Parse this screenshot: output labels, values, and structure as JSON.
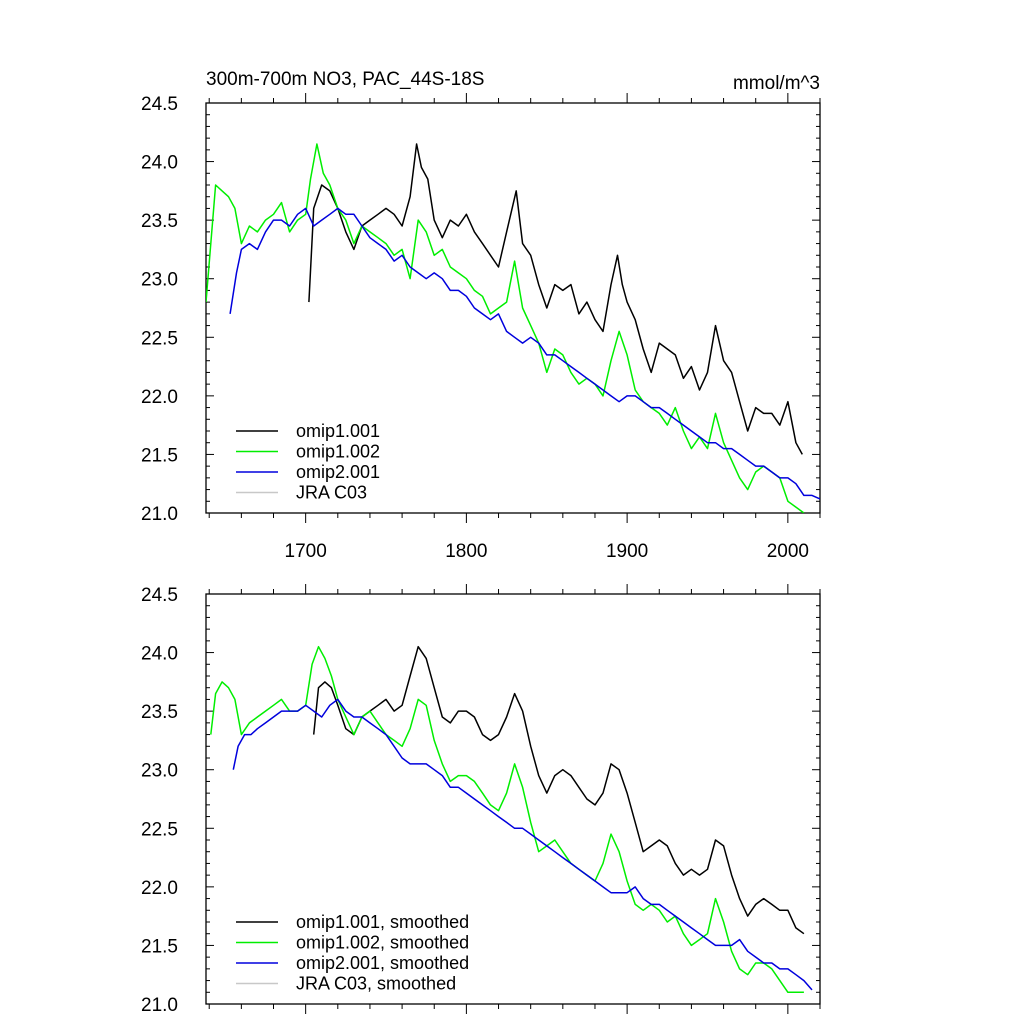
{
  "chart_data": [
    {
      "type": "line",
      "title": "300m-700m NO3, PAC_44S-18S",
      "units_label": "mmol/m^3",
      "xlim": [
        1638,
        2020
      ],
      "ylim": [
        21.0,
        24.5
      ],
      "xticks": [
        1700,
        1800,
        1900,
        2000
      ],
      "xtick_labels": [
        "1700",
        "1800",
        "1900",
        "2000"
      ],
      "yticks": [
        21.0,
        21.5,
        22.0,
        22.5,
        23.0,
        23.5,
        24.0,
        24.5
      ],
      "ytick_labels": [
        "21.0",
        "21.5",
        "22.0",
        "22.5",
        "23.0",
        "23.5",
        "24.0",
        "24.5"
      ],
      "legend_position": "bottom-left",
      "series": [
        {
          "name": "omip1.001",
          "color": "#000000",
          "x": [
            1702,
            1705,
            1710,
            1715,
            1720,
            1725,
            1730,
            1735,
            1740,
            1745,
            1750,
            1755,
            1760,
            1765,
            1769,
            1772,
            1776,
            1780,
            1785,
            1790,
            1795,
            1800,
            1805,
            1810,
            1815,
            1820,
            1825,
            1831,
            1835,
            1840,
            1845,
            1850,
            1855,
            1860,
            1865,
            1870,
            1875,
            1880,
            1885,
            1890,
            1894,
            1897,
            1900,
            1905,
            1910,
            1915,
            1920,
            1925,
            1930,
            1935,
            1940,
            1945,
            1950,
            1955,
            1960,
            1965,
            1970,
            1975,
            1980,
            1985,
            1990,
            1995,
            2000,
            2005,
            2009
          ],
          "values": [
            22.8,
            23.6,
            23.8,
            23.75,
            23.6,
            23.4,
            23.25,
            23.45,
            23.5,
            23.55,
            23.6,
            23.55,
            23.45,
            23.7,
            24.15,
            23.95,
            23.85,
            23.5,
            23.35,
            23.5,
            23.45,
            23.55,
            23.4,
            23.3,
            23.2,
            23.1,
            23.4,
            23.75,
            23.3,
            23.2,
            22.95,
            22.75,
            22.95,
            22.9,
            22.95,
            22.7,
            22.8,
            22.65,
            22.55,
            22.95,
            23.2,
            22.95,
            22.8,
            22.65,
            22.4,
            22.2,
            22.45,
            22.4,
            22.35,
            22.15,
            22.25,
            22.05,
            22.2,
            22.6,
            22.3,
            22.2,
            21.95,
            21.7,
            21.9,
            21.85,
            21.85,
            21.75,
            21.95,
            21.6,
            21.5
          ]
        },
        {
          "name": "omip1.002",
          "color": "#00ee00",
          "x": [
            1638,
            1641,
            1644,
            1648,
            1652,
            1656,
            1660,
            1665,
            1670,
            1675,
            1680,
            1685,
            1690,
            1695,
            1700,
            1703,
            1707,
            1711,
            1715,
            1720,
            1725,
            1730,
            1735,
            1740,
            1745,
            1750,
            1755,
            1760,
            1765,
            1770,
            1775,
            1780,
            1785,
            1790,
            1795,
            1800,
            1805,
            1810,
            1815,
            1820,
            1825,
            1830,
            1835,
            1840,
            1845,
            1850,
            1855,
            1860,
            1865,
            1870,
            1875,
            1880,
            1885,
            1890,
            1895,
            1900,
            1905,
            1910,
            1915,
            1920,
            1925,
            1930,
            1935,
            1940,
            1945,
            1950,
            1955,
            1960,
            1965,
            1970,
            1975,
            1980,
            1985,
            1990,
            1995,
            2000,
            2005,
            2010
          ],
          "values": [
            22.8,
            23.3,
            23.8,
            23.75,
            23.7,
            23.6,
            23.3,
            23.45,
            23.4,
            23.5,
            23.55,
            23.65,
            23.4,
            23.5,
            23.55,
            23.85,
            24.15,
            23.9,
            23.8,
            23.6,
            23.5,
            23.3,
            23.45,
            23.4,
            23.35,
            23.3,
            23.2,
            23.25,
            23.0,
            23.5,
            23.4,
            23.2,
            23.25,
            23.1,
            23.05,
            23.0,
            22.9,
            22.85,
            22.7,
            22.75,
            22.8,
            23.15,
            22.75,
            22.6,
            22.45,
            22.2,
            22.4,
            22.35,
            22.2,
            22.1,
            22.15,
            22.1,
            22.0,
            22.3,
            22.55,
            22.35,
            22.05,
            21.95,
            21.9,
            21.85,
            21.75,
            21.9,
            21.7,
            21.55,
            21.65,
            21.55,
            21.85,
            21.6,
            21.45,
            21.3,
            21.2,
            21.35,
            21.4,
            21.35,
            21.3,
            21.1,
            21.05,
            21.0
          ]
        },
        {
          "name": "omip2.001",
          "color": "#0000dd",
          "x": [
            1653,
            1657,
            1660,
            1665,
            1670,
            1675,
            1680,
            1685,
            1690,
            1695,
            1700,
            1705,
            1710,
            1715,
            1720,
            1725,
            1730,
            1735,
            1740,
            1745,
            1750,
            1755,
            1760,
            1765,
            1770,
            1775,
            1780,
            1785,
            1790,
            1795,
            1800,
            1805,
            1810,
            1815,
            1820,
            1825,
            1830,
            1835,
            1840,
            1845,
            1850,
            1855,
            1860,
            1865,
            1870,
            1875,
            1880,
            1885,
            1890,
            1895,
            1900,
            1905,
            1910,
            1915,
            1920,
            1925,
            1930,
            1935,
            1940,
            1945,
            1950,
            1955,
            1960,
            1965,
            1970,
            1975,
            1980,
            1985,
            1990,
            1995,
            2000,
            2005,
            2010,
            2015,
            2020
          ],
          "values": [
            22.7,
            23.05,
            23.25,
            23.3,
            23.25,
            23.4,
            23.5,
            23.5,
            23.45,
            23.55,
            23.6,
            23.45,
            23.5,
            23.55,
            23.6,
            23.55,
            23.55,
            23.45,
            23.35,
            23.3,
            23.25,
            23.15,
            23.2,
            23.1,
            23.05,
            23.0,
            23.05,
            23.0,
            22.9,
            22.9,
            22.85,
            22.75,
            22.7,
            22.65,
            22.7,
            22.55,
            22.5,
            22.45,
            22.5,
            22.45,
            22.35,
            22.35,
            22.3,
            22.25,
            22.2,
            22.15,
            22.1,
            22.05,
            22.0,
            21.95,
            22.0,
            22.0,
            21.95,
            21.9,
            21.9,
            21.85,
            21.8,
            21.75,
            21.7,
            21.65,
            21.6,
            21.6,
            21.55,
            21.55,
            21.5,
            21.45,
            21.4,
            21.4,
            21.35,
            21.3,
            21.3,
            21.25,
            21.15,
            21.15,
            21.12
          ]
        },
        {
          "name": "JRA C03",
          "color": "#c8c8c8",
          "x": [],
          "values": []
        }
      ]
    },
    {
      "type": "line",
      "title": "",
      "units_label": "",
      "xlim": [
        1638,
        2020
      ],
      "ylim": [
        21.0,
        24.5
      ],
      "xticks": [
        1700,
        1800,
        1900,
        2000
      ],
      "xtick_labels": [],
      "yticks": [
        21.0,
        21.5,
        22.0,
        22.5,
        23.0,
        23.5,
        24.0,
        24.5
      ],
      "ytick_labels": [
        "21.0",
        "21.5",
        "22.0",
        "22.5",
        "23.0",
        "23.5",
        "24.0",
        "24.5"
      ],
      "legend_position": "bottom-left",
      "series": [
        {
          "name": "omip1.001, smoothed",
          "color": "#000000",
          "x": [
            1705,
            1708,
            1712,
            1716,
            1720,
            1725,
            1730,
            1735,
            1740,
            1745,
            1750,
            1755,
            1760,
            1765,
            1770,
            1775,
            1780,
            1785,
            1790,
            1795,
            1800,
            1805,
            1810,
            1815,
            1820,
            1825,
            1830,
            1835,
            1840,
            1845,
            1850,
            1855,
            1860,
            1865,
            1870,
            1875,
            1880,
            1885,
            1890,
            1895,
            1900,
            1905,
            1910,
            1915,
            1920,
            1925,
            1930,
            1935,
            1940,
            1945,
            1950,
            1955,
            1960,
            1965,
            1970,
            1975,
            1980,
            1985,
            1990,
            1995,
            2000,
            2005,
            2010
          ],
          "values": [
            23.3,
            23.7,
            23.75,
            23.7,
            23.55,
            23.35,
            23.3,
            23.45,
            23.5,
            23.55,
            23.6,
            23.5,
            23.55,
            23.8,
            24.05,
            23.95,
            23.7,
            23.45,
            23.4,
            23.5,
            23.5,
            23.45,
            23.3,
            23.25,
            23.3,
            23.45,
            23.65,
            23.5,
            23.2,
            22.95,
            22.8,
            22.95,
            23.0,
            22.95,
            22.85,
            22.75,
            22.7,
            22.8,
            23.05,
            23.0,
            22.8,
            22.55,
            22.3,
            22.35,
            22.4,
            22.35,
            22.2,
            22.1,
            22.15,
            22.1,
            22.15,
            22.4,
            22.35,
            22.1,
            21.9,
            21.75,
            21.85,
            21.9,
            21.85,
            21.8,
            21.8,
            21.65,
            21.6
          ]
        },
        {
          "name": "omip1.002, smoothed",
          "color": "#00ee00",
          "x": [
            1641,
            1644,
            1648,
            1652,
            1656,
            1660,
            1665,
            1670,
            1675,
            1680,
            1685,
            1690,
            1695,
            1700,
            1704,
            1708,
            1712,
            1716,
            1720,
            1725,
            1730,
            1735,
            1740,
            1745,
            1750,
            1755,
            1760,
            1765,
            1770,
            1775,
            1780,
            1785,
            1790,
            1795,
            1800,
            1805,
            1810,
            1815,
            1820,
            1825,
            1830,
            1835,
            1840,
            1845,
            1850,
            1855,
            1860,
            1865,
            1870,
            1875,
            1880,
            1885,
            1890,
            1895,
            1900,
            1905,
            1910,
            1915,
            1920,
            1925,
            1930,
            1935,
            1940,
            1945,
            1950,
            1955,
            1960,
            1965,
            1970,
            1975,
            1980,
            1985,
            1990,
            1995,
            2000,
            2005,
            2010
          ],
          "values": [
            23.3,
            23.65,
            23.75,
            23.7,
            23.6,
            23.3,
            23.4,
            23.45,
            23.5,
            23.55,
            23.6,
            23.5,
            23.5,
            23.55,
            23.9,
            24.05,
            23.95,
            23.8,
            23.6,
            23.45,
            23.3,
            23.45,
            23.5,
            23.4,
            23.3,
            23.25,
            23.2,
            23.35,
            23.6,
            23.55,
            23.25,
            23.05,
            22.9,
            22.95,
            22.95,
            22.9,
            22.8,
            22.7,
            22.65,
            22.8,
            23.05,
            22.85,
            22.55,
            22.3,
            22.35,
            22.4,
            22.3,
            22.2,
            22.15,
            22.1,
            22.05,
            22.2,
            22.45,
            22.3,
            22.05,
            21.85,
            21.8,
            21.85,
            21.8,
            21.7,
            21.75,
            21.6,
            21.5,
            21.55,
            21.6,
            21.9,
            21.7,
            21.45,
            21.3,
            21.25,
            21.35,
            21.35,
            21.3,
            21.2,
            21.1,
            21.1,
            21.1
          ]
        },
        {
          "name": "omip2.001, smoothed",
          "color": "#0000dd",
          "x": [
            1655,
            1658,
            1662,
            1666,
            1670,
            1675,
            1680,
            1685,
            1690,
            1695,
            1700,
            1705,
            1710,
            1715,
            1720,
            1725,
            1730,
            1735,
            1740,
            1745,
            1750,
            1755,
            1760,
            1765,
            1770,
            1775,
            1780,
            1785,
            1790,
            1795,
            1800,
            1805,
            1810,
            1815,
            1820,
            1825,
            1830,
            1835,
            1840,
            1845,
            1850,
            1855,
            1860,
            1865,
            1870,
            1875,
            1880,
            1885,
            1890,
            1895,
            1900,
            1905,
            1910,
            1915,
            1920,
            1925,
            1930,
            1935,
            1940,
            1945,
            1950,
            1955,
            1960,
            1965,
            1970,
            1975,
            1980,
            1985,
            1990,
            1995,
            2000,
            2005,
            2010,
            2015
          ],
          "values": [
            23.0,
            23.2,
            23.3,
            23.3,
            23.35,
            23.4,
            23.45,
            23.5,
            23.5,
            23.5,
            23.55,
            23.5,
            23.45,
            23.55,
            23.6,
            23.5,
            23.45,
            23.45,
            23.4,
            23.35,
            23.3,
            23.2,
            23.1,
            23.05,
            23.05,
            23.05,
            23.0,
            22.95,
            22.85,
            22.85,
            22.8,
            22.75,
            22.7,
            22.65,
            22.6,
            22.55,
            22.5,
            22.5,
            22.45,
            22.4,
            22.35,
            22.3,
            22.25,
            22.2,
            22.15,
            22.1,
            22.05,
            22.0,
            21.95,
            21.95,
            21.95,
            22.0,
            21.9,
            21.85,
            21.85,
            21.8,
            21.75,
            21.7,
            21.65,
            21.6,
            21.55,
            21.5,
            21.5,
            21.5,
            21.55,
            21.45,
            21.4,
            21.35,
            21.35,
            21.3,
            21.3,
            21.25,
            21.2,
            21.12
          ]
        },
        {
          "name": "JRA C03, smoothed",
          "color": "#c8c8c8",
          "x": [],
          "values": []
        }
      ]
    }
  ]
}
